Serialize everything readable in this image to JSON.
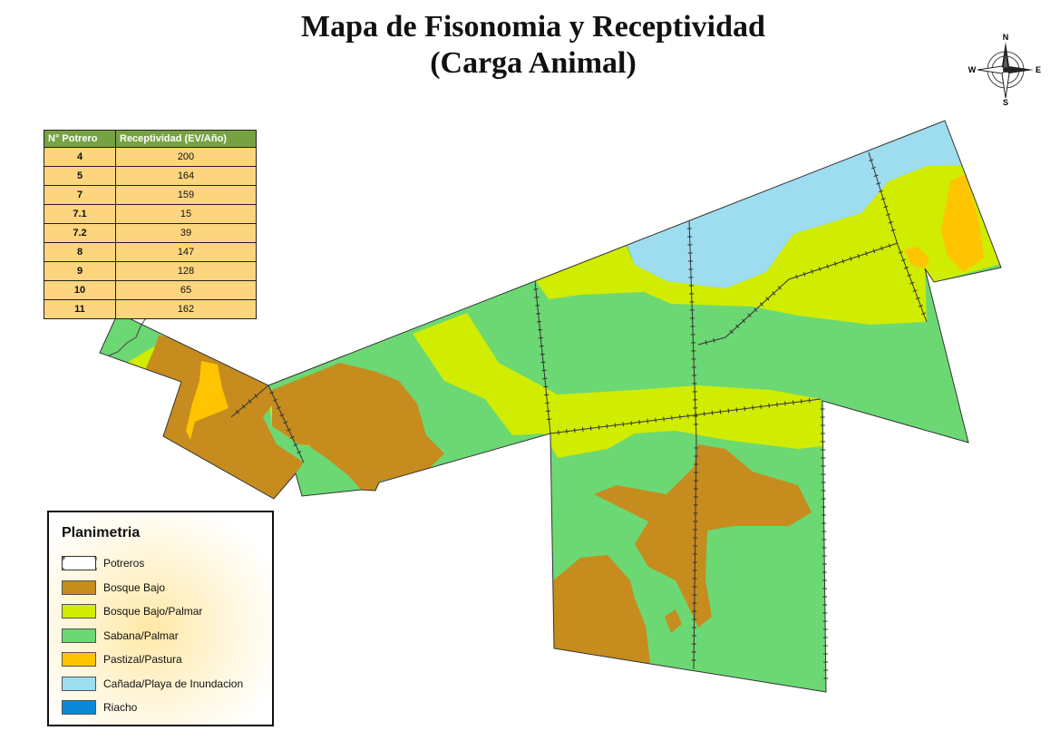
{
  "title": {
    "line1": "Mapa de Fisonomia y Receptividad",
    "line2": "(Carga Animal)"
  },
  "compass": {
    "n": "N",
    "s": "S",
    "e": "E",
    "w": "W"
  },
  "table": {
    "headers": [
      "N° Potrero",
      "Receptividad (EV/Año)"
    ],
    "rows": [
      {
        "potrero": "4",
        "receptividad": "200"
      },
      {
        "potrero": "5",
        "receptividad": "164"
      },
      {
        "potrero": "7",
        "receptividad": "159"
      },
      {
        "potrero": "7.1",
        "receptividad": "15"
      },
      {
        "potrero": "7.2",
        "receptividad": "39"
      },
      {
        "potrero": "8",
        "receptividad": "147"
      },
      {
        "potrero": "9",
        "receptividad": "128"
      },
      {
        "potrero": "10",
        "receptividad": "65"
      },
      {
        "potrero": "11",
        "receptividad": "162"
      }
    ]
  },
  "legend": {
    "title": "Planimetria",
    "items": [
      {
        "label": "Potreros",
        "color": "#ffffff",
        "kind": "outline"
      },
      {
        "label": "Bosque Bajo",
        "color": "#c68c1e"
      },
      {
        "label": "Bosque Bajo/Palmar",
        "color": "#d0ec00"
      },
      {
        "label": "Sabana/Palmar",
        "color": "#6cd873"
      },
      {
        "label": "Pastizal/Pastura",
        "color": "#fec400"
      },
      {
        "label": "Cañada/Playa de Inundacion",
        "color": "#9edcef"
      },
      {
        "label": "Riacho",
        "color": "#0a8ad6"
      }
    ]
  },
  "colors": {
    "bosque_bajo": "#c68c1e",
    "bosque_palmar": "#d0ec00",
    "sabana_palmar": "#6cd873",
    "pastizal": "#fec400",
    "canada": "#9edcef",
    "riacho": "#0a8ad6"
  }
}
